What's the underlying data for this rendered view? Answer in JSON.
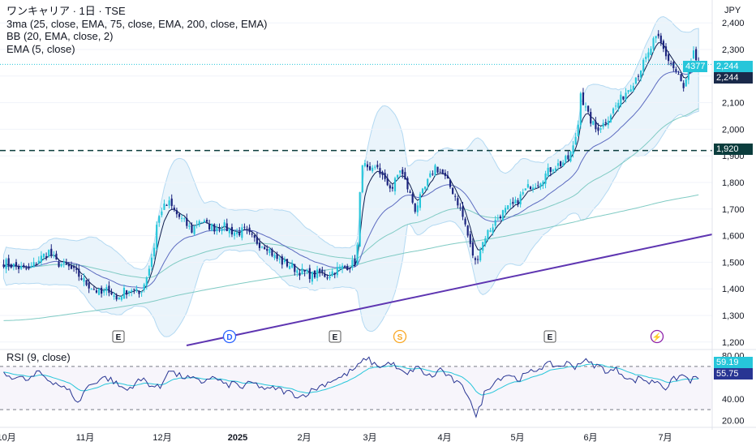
{
  "legend": {
    "title": "ワンキャリア · 1日 · TSE",
    "ma": "3ma (25, close, EMA, 75, close, EMA, 200, close, EMA)",
    "bb": "BB (20, EMA, close, 2)",
    "ema": "EMA (5, close)"
  },
  "currency": "JPY",
  "rsi_label": "RSI (9, close)",
  "colors": {
    "bull": "#26c6da",
    "bear": "#1a237e",
    "ema_fast": "#0d1b4c",
    "ma25": "#5c6bc0",
    "ma75": "#80cbc4",
    "ma200": "#80cbc4",
    "band": "#b3d9f2",
    "trendline": "#5e35b1",
    "resistance": "#0b3d3d",
    "price_tag": "#26c6da",
    "rsi_line": "#283593",
    "rsi_ma": "#26c6da"
  },
  "chart_data": {
    "type": "candlestick",
    "price_axis": {
      "ticks": [
        "2,400",
        "2,300",
        "2,200",
        "2,100",
        "2,000",
        "1,900",
        "1,800",
        "1,700",
        "1,600",
        "1,500",
        "1,400",
        "1,300",
        "1,200"
      ],
      "ylim": [
        1175,
        2425
      ]
    },
    "time_axis": {
      "labels": [
        "10月",
        "11月",
        "12月",
        "2025",
        "2月",
        "3月",
        "4月",
        "5月",
        "6月",
        "7月"
      ]
    },
    "last_price": "2,244",
    "price_label_ticker": "4377",
    "resistance": {
      "value": "1,920"
    },
    "events": [
      {
        "label": "E",
        "kind": "earnings"
      },
      {
        "label": "D",
        "kind": "dividend"
      },
      {
        "label": "E",
        "kind": "earnings"
      },
      {
        "label": "S",
        "kind": "split"
      },
      {
        "label": "E",
        "kind": "earnings"
      },
      {
        "label": "⚡",
        "kind": "news"
      }
    ],
    "rsi_axis": {
      "ticks": [
        "80.00",
        "40.00",
        "20.00"
      ],
      "ylim": [
        15,
        85
      ],
      "bands": [
        70,
        30
      ]
    },
    "rsi_values": [
      "59.19",
      "55.75"
    ],
    "close_path": [
      [
        0,
        1500
      ],
      [
        6,
        1480
      ],
      [
        10,
        1470
      ],
      [
        14,
        1510
      ],
      [
        18,
        1540
      ],
      [
        21,
        1500
      ],
      [
        26,
        1480
      ],
      [
        30,
        1450
      ],
      [
        33,
        1420
      ],
      [
        36,
        1400
      ],
      [
        39,
        1380
      ],
      [
        42,
        1400
      ],
      [
        45,
        1360
      ],
      [
        48,
        1390
      ],
      [
        51,
        1400
      ],
      [
        54,
        1380
      ],
      [
        56,
        1420
      ],
      [
        58,
        1480
      ],
      [
        60,
        1560
      ],
      [
        61,
        1640
      ],
      [
        63,
        1700
      ],
      [
        66,
        1720
      ],
      [
        69,
        1680
      ],
      [
        72,
        1650
      ],
      [
        75,
        1620
      ],
      [
        78,
        1660
      ],
      [
        81,
        1640
      ],
      [
        84,
        1630
      ],
      [
        87,
        1640
      ],
      [
        90,
        1620
      ],
      [
        93,
        1610
      ],
      [
        96,
        1620
      ],
      [
        99,
        1590
      ],
      [
        102,
        1570
      ],
      [
        105,
        1560
      ],
      [
        108,
        1520
      ],
      [
        111,
        1500
      ],
      [
        114,
        1490
      ],
      [
        117,
        1470
      ],
      [
        120,
        1460
      ],
      [
        123,
        1450
      ],
      [
        126,
        1460
      ],
      [
        129,
        1450
      ],
      [
        132,
        1470
      ],
      [
        135,
        1480
      ],
      [
        138,
        1490
      ],
      [
        140,
        1500
      ],
      [
        141,
        1560
      ],
      [
        142,
        1750
      ],
      [
        143,
        1880
      ],
      [
        144,
        1860
      ],
      [
        146,
        1830
      ],
      [
        149,
        1860
      ],
      [
        152,
        1800
      ],
      [
        155,
        1780
      ],
      [
        158,
        1850
      ],
      [
        161,
        1780
      ],
      [
        164,
        1700
      ],
      [
        167,
        1760
      ],
      [
        170,
        1820
      ],
      [
        172,
        1860
      ],
      [
        175,
        1830
      ],
      [
        177,
        1800
      ],
      [
        180,
        1750
      ],
      [
        182,
        1700
      ],
      [
        184,
        1640
      ],
      [
        186,
        1560
      ],
      [
        188,
        1500
      ],
      [
        190,
        1550
      ],
      [
        192,
        1600
      ],
      [
        195,
        1640
      ],
      [
        198,
        1680
      ],
      [
        201,
        1700
      ],
      [
        204,
        1720
      ],
      [
        207,
        1760
      ],
      [
        210,
        1790
      ],
      [
        213,
        1800
      ],
      [
        216,
        1830
      ],
      [
        219,
        1860
      ],
      [
        222,
        1870
      ],
      [
        225,
        1890
      ],
      [
        227,
        1930
      ],
      [
        229,
        2020
      ],
      [
        230,
        2150
      ],
      [
        231,
        2100
      ],
      [
        233,
        2050
      ],
      [
        236,
        2000
      ],
      [
        239,
        2020
      ],
      [
        242,
        2060
      ],
      [
        245,
        2100
      ],
      [
        248,
        2140
      ],
      [
        251,
        2180
      ],
      [
        254,
        2230
      ],
      [
        257,
        2280
      ],
      [
        259,
        2330
      ],
      [
        261,
        2340
      ],
      [
        263,
        2300
      ],
      [
        265,
        2260
      ],
      [
        267,
        2230
      ],
      [
        269,
        2200
      ],
      [
        271,
        2150
      ],
      [
        273,
        2210
      ],
      [
        275,
        2280
      ],
      [
        277,
        2244
      ]
    ],
    "rsi_path": [
      [
        0,
        62
      ],
      [
        5,
        60
      ],
      [
        9,
        57
      ],
      [
        13,
        65
      ],
      [
        16,
        58
      ],
      [
        19,
        55
      ],
      [
        22,
        50
      ],
      [
        25,
        45
      ],
      [
        27,
        35
      ],
      [
        30,
        50
      ],
      [
        33,
        55
      ],
      [
        36,
        60
      ],
      [
        39,
        58
      ],
      [
        42,
        52
      ],
      [
        45,
        48
      ],
      [
        48,
        55
      ],
      [
        51,
        58
      ],
      [
        54,
        52
      ],
      [
        57,
        50
      ],
      [
        60,
        68
      ],
      [
        63,
        62
      ],
      [
        66,
        60
      ],
      [
        69,
        58
      ],
      [
        72,
        55
      ],
      [
        75,
        60
      ],
      [
        78,
        58
      ],
      [
        81,
        52
      ],
      [
        84,
        55
      ],
      [
        87,
        50
      ],
      [
        90,
        55
      ],
      [
        93,
        52
      ],
      [
        96,
        48
      ],
      [
        99,
        50
      ],
      [
        102,
        47
      ],
      [
        105,
        45
      ],
      [
        108,
        42
      ],
      [
        111,
        46
      ],
      [
        114,
        50
      ],
      [
        117,
        54
      ],
      [
        120,
        58
      ],
      [
        123,
        60
      ],
      [
        126,
        65
      ],
      [
        129,
        70
      ],
      [
        132,
        78
      ],
      [
        135,
        72
      ],
      [
        138,
        70
      ],
      [
        141,
        74
      ],
      [
        144,
        66
      ],
      [
        147,
        62
      ],
      [
        150,
        70
      ],
      [
        153,
        64
      ],
      [
        156,
        60
      ],
      [
        159,
        68
      ],
      [
        162,
        60
      ],
      [
        165,
        55
      ],
      [
        168,
        48
      ],
      [
        170,
        40
      ],
      [
        172,
        22
      ],
      [
        175,
        45
      ],
      [
        178,
        55
      ],
      [
        181,
        60
      ],
      [
        184,
        63
      ],
      [
        187,
        58
      ],
      [
        190,
        62
      ],
      [
        193,
        66
      ],
      [
        196,
        70
      ],
      [
        199,
        72
      ],
      [
        202,
        70
      ],
      [
        205,
        73
      ],
      [
        208,
        70
      ],
      [
        211,
        76
      ],
      [
        214,
        72
      ],
      [
        217,
        70
      ],
      [
        220,
        65
      ],
      [
        223,
        67
      ],
      [
        226,
        62
      ],
      [
        229,
        56
      ],
      [
        232,
        60
      ],
      [
        235,
        55
      ],
      [
        238,
        57
      ],
      [
        241,
        50
      ],
      [
        244,
        58
      ],
      [
        247,
        62
      ],
      [
        250,
        57
      ],
      [
        253,
        60
      ]
    ]
  }
}
